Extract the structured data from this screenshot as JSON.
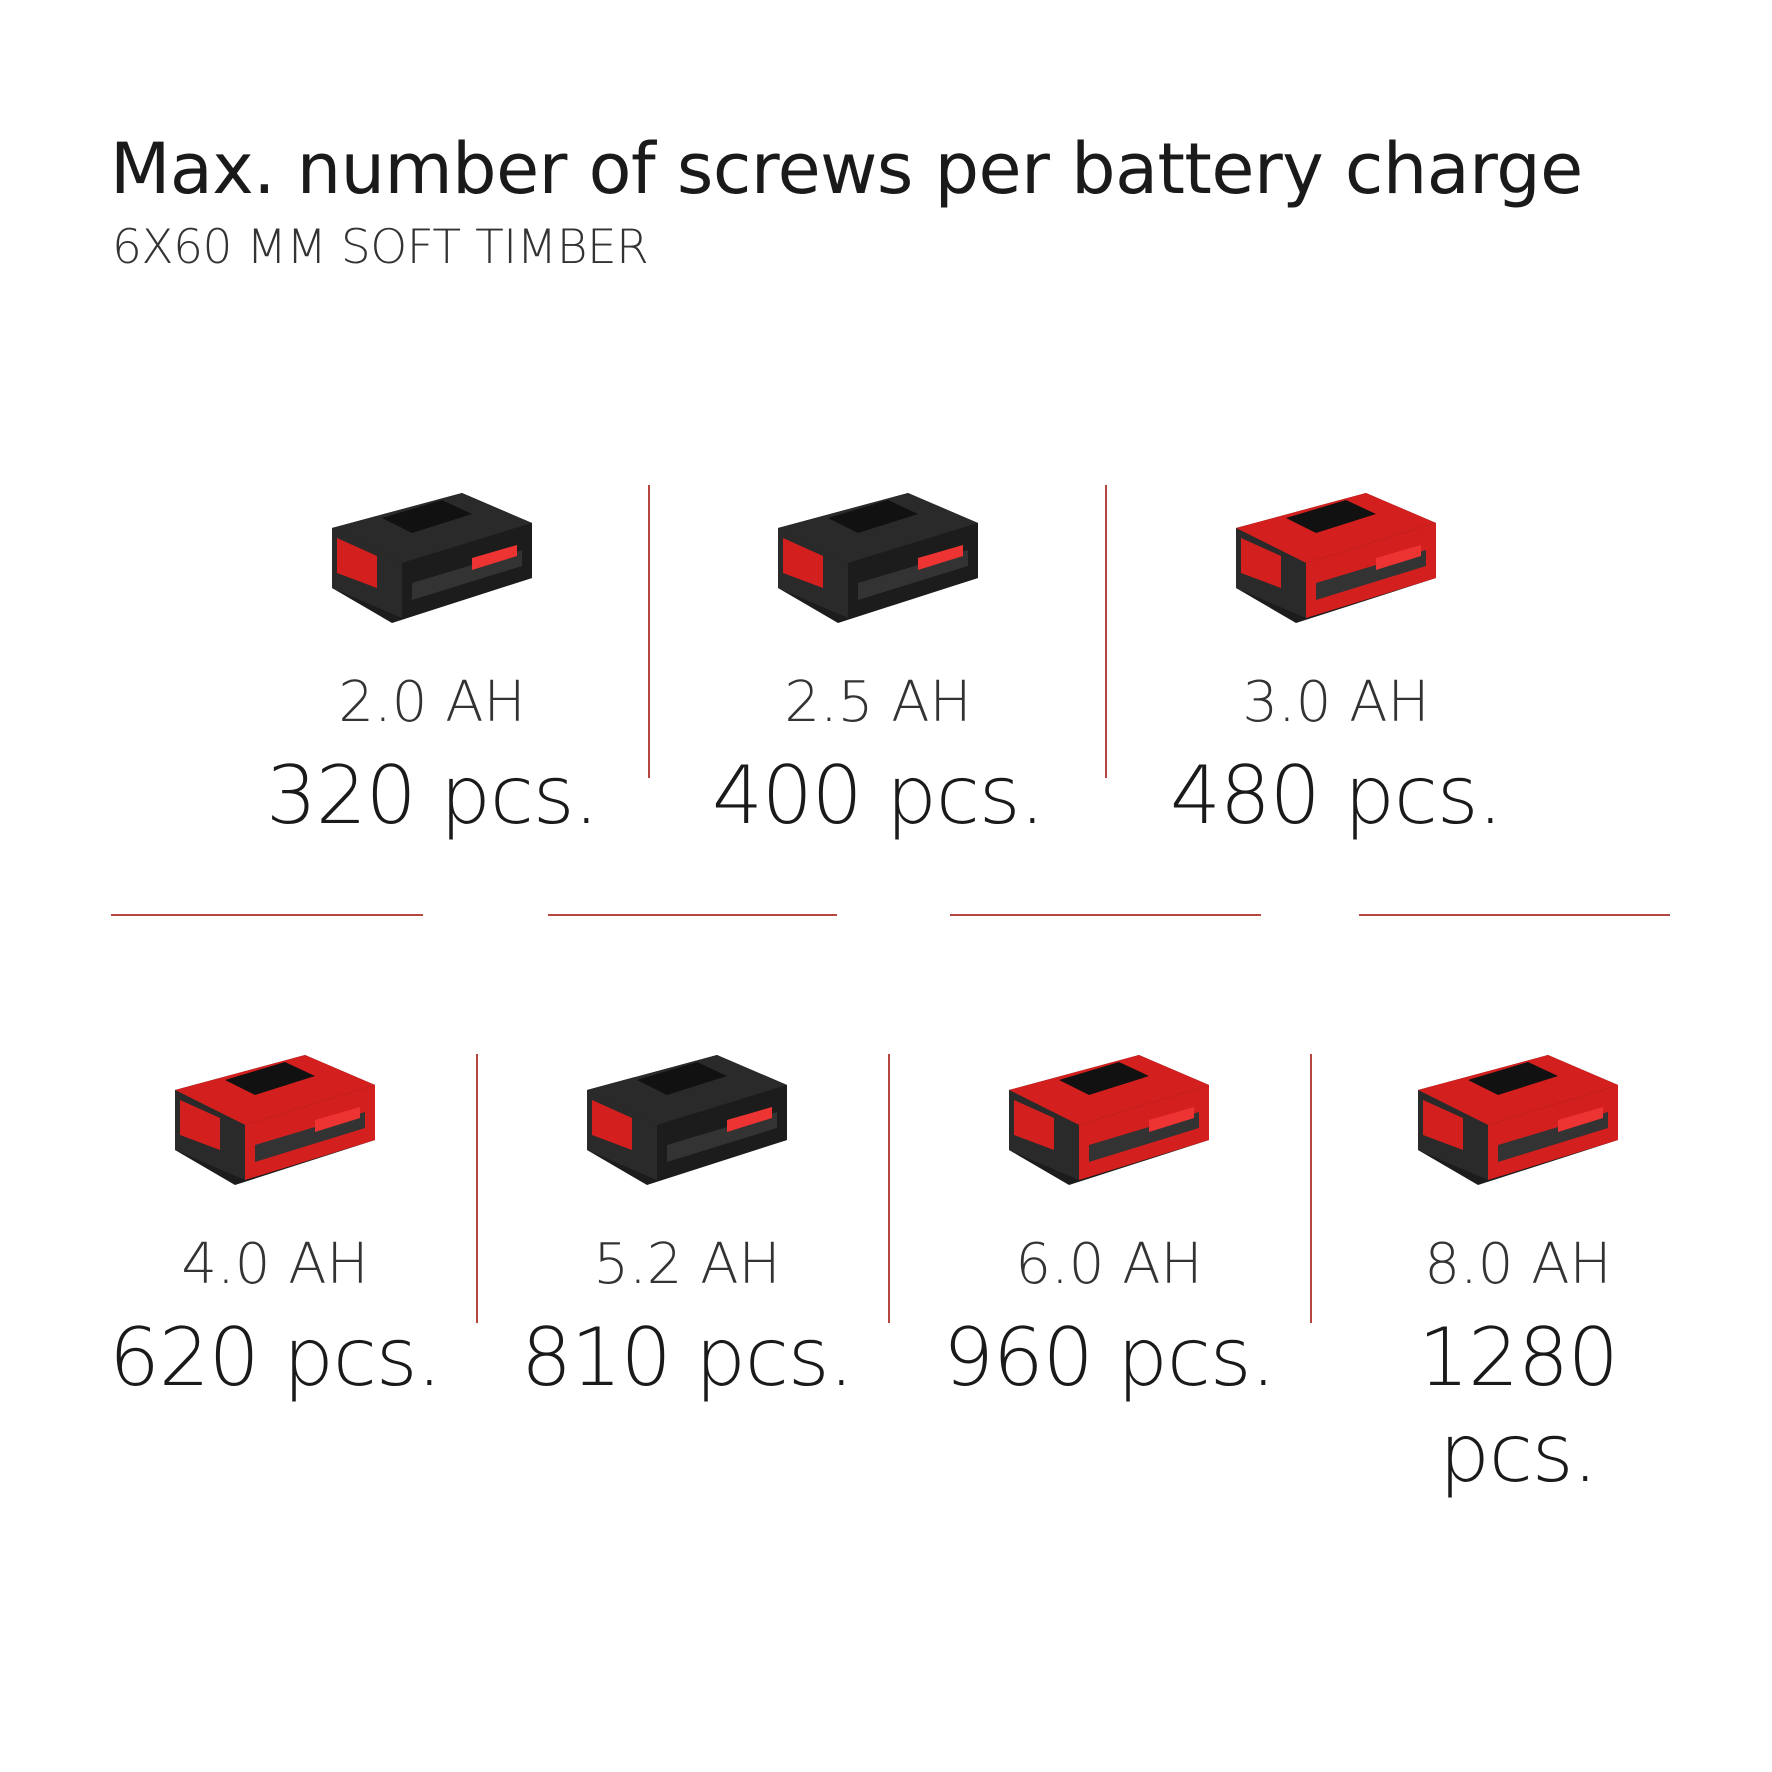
{
  "header": {
    "title": "Max. number of screws per battery charge",
    "subtitle": "6X60 MM SOFT TIMBER"
  },
  "colors": {
    "accent": "#b4473f",
    "battery_red": "#d41f1f",
    "battery_black": "#1c1c1c"
  },
  "batteries": [
    {
      "capacity": "2.0 AH",
      "screws": "320 pcs.",
      "style": "black"
    },
    {
      "capacity": "2.5 AH",
      "screws": "400 pcs.",
      "style": "black"
    },
    {
      "capacity": "3.0 AH",
      "screws": "480 pcs.",
      "style": "red"
    },
    {
      "capacity": "4.0 AH",
      "screws": "620 pcs.",
      "style": "red"
    },
    {
      "capacity": "5.2 AH",
      "screws": "810 pcs.",
      "style": "black"
    },
    {
      "capacity": "6.0 AH",
      "screws": "960 pcs.",
      "style": "red"
    },
    {
      "capacity": "8.0 AH",
      "screws": "1280 pcs.",
      "style": "red"
    }
  ]
}
